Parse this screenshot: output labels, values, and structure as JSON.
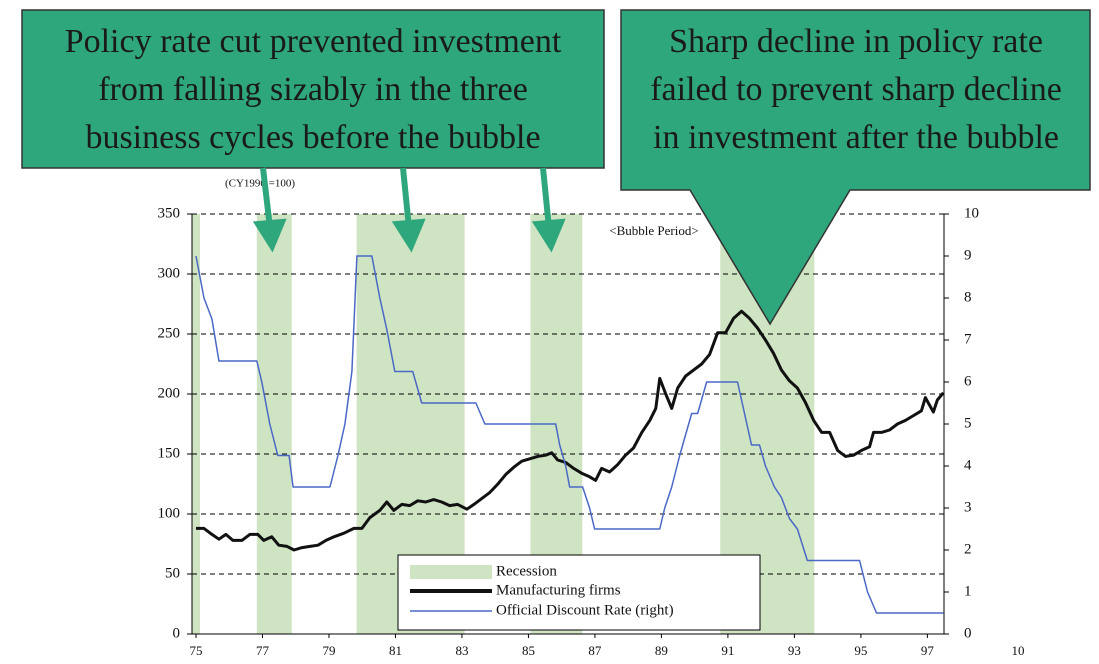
{
  "chart_data": {
    "type": "line",
    "annotations": {
      "left_box": [
        "Policy rate cut prevented investment",
        "from falling sizably in the three",
        "business cycles before the bubble"
      ],
      "right_box": [
        "Sharp decline in policy rate",
        "failed to prevent sharp decline",
        "in investment after the bubble"
      ]
    },
    "left_axis_label": "(CY1990 =100)",
    "right_axis_label": "(%)",
    "bubble_label": "<Bubble Period>",
    "corner_label": "10",
    "xlim": [
      74.88,
      97.5
    ],
    "xticks": [
      75,
      77,
      79,
      81,
      83,
      85,
      87,
      89,
      91,
      93,
      95,
      97
    ],
    "ylim": [
      0,
      350
    ],
    "yticks": [
      0,
      50,
      100,
      150,
      200,
      250,
      300,
      350
    ],
    "y2lim": [
      0,
      10
    ],
    "y2ticks": [
      0,
      1,
      2,
      3,
      4,
      5,
      6,
      7,
      8,
      9,
      10
    ],
    "grid": true,
    "recession": {
      "name": "Recession",
      "color": "#cfe4c3",
      "ranges": [
        [
          74.88,
          75.12
        ],
        [
          76.83,
          77.88
        ],
        [
          79.83,
          83.08
        ],
        [
          85.06,
          86.62
        ],
        [
          90.77,
          93.6
        ]
      ]
    },
    "series": [
      {
        "name": "Manufacturing firms",
        "color": "#111111",
        "x": [
          75.0,
          75.24,
          75.48,
          75.69,
          75.9,
          76.11,
          76.38,
          76.62,
          76.86,
          77.04,
          77.28,
          77.49,
          77.74,
          77.95,
          78.19,
          78.43,
          78.67,
          78.91,
          79.15,
          79.45,
          79.75,
          79.99,
          80.23,
          80.53,
          80.74,
          80.95,
          81.19,
          81.43,
          81.67,
          81.91,
          82.15,
          82.39,
          82.63,
          82.87,
          83.15,
          83.36,
          83.6,
          83.84,
          84.08,
          84.32,
          84.56,
          84.8,
          85.04,
          85.28,
          85.52,
          85.7,
          85.88,
          86.12,
          86.36,
          86.6,
          86.84,
          87.02,
          87.2,
          87.44,
          87.68,
          87.92,
          88.16,
          88.41,
          88.65,
          88.83,
          88.95,
          89.13,
          89.31,
          89.49,
          89.73,
          89.97,
          90.21,
          90.45,
          90.69,
          90.93,
          91.17,
          91.41,
          91.65,
          91.89,
          92.13,
          92.37,
          92.61,
          92.85,
          93.09,
          93.33,
          93.58,
          93.82,
          94.06,
          94.3,
          94.54,
          94.78,
          95.02,
          95.26,
          95.38,
          95.62,
          95.86,
          96.1,
          96.34,
          96.58,
          96.82,
          96.94,
          97.18,
          97.3,
          97.48
        ],
        "values": [
          88,
          88,
          83,
          79,
          83,
          78,
          78,
          83,
          83,
          78,
          81,
          74,
          73,
          70,
          72,
          73,
          74,
          78,
          81,
          84,
          88,
          88,
          97,
          103,
          110,
          103,
          108,
          107,
          111,
          110,
          112,
          110,
          107,
          108,
          104,
          108,
          113,
          118,
          125,
          133,
          139,
          144,
          146,
          148,
          149,
          151,
          145,
          143,
          138,
          134,
          131,
          128,
          138,
          135,
          141,
          149,
          155,
          168,
          178,
          188,
          213,
          200,
          188,
          205,
          215,
          220,
          225,
          233,
          251,
          251,
          263,
          269,
          263,
          255,
          245,
          234,
          220,
          211,
          205,
          193,
          178,
          168,
          168,
          153,
          148,
          149,
          153,
          156,
          168,
          168,
          170,
          175,
          178,
          182,
          186,
          197,
          185,
          195,
          201
        ]
      },
      {
        "name": "Official Discount Rate (right)",
        "color": "#4a68c6",
        "axis": "y2",
        "x": [
          75.0,
          75.24,
          75.48,
          75.69,
          76.83,
          76.98,
          77.22,
          77.46,
          77.8,
          77.92,
          79.03,
          79.27,
          79.48,
          79.69,
          79.84,
          80.29,
          80.53,
          80.74,
          80.98,
          81.52,
          81.79,
          83.42,
          83.69,
          85.82,
          85.94,
          86.12,
          86.24,
          86.63,
          86.84,
          86.99,
          88.95,
          89.1,
          89.31,
          89.55,
          89.91,
          90.09,
          90.36,
          91.29,
          91.5,
          91.71,
          91.95,
          92.13,
          92.4,
          92.61,
          92.85,
          93.09,
          93.39,
          94.96,
          95.2,
          95.47,
          97.48
        ],
        "values": [
          9.0,
          8.0,
          7.5,
          6.5,
          6.5,
          6.0,
          5.0,
          4.25,
          4.25,
          3.5,
          3.5,
          4.25,
          5.0,
          6.25,
          9.0,
          9.0,
          8.0,
          7.25,
          6.25,
          6.25,
          5.5,
          5.5,
          5.0,
          5.0,
          4.5,
          4.0,
          3.5,
          3.5,
          3.0,
          2.5,
          2.5,
          3.0,
          3.5,
          4.25,
          5.25,
          5.25,
          6.0,
          6.0,
          5.25,
          4.5,
          4.5,
          4.0,
          3.5,
          3.25,
          2.75,
          2.5,
          1.75,
          1.75,
          1.0,
          0.5,
          0.5
        ]
      }
    ]
  }
}
